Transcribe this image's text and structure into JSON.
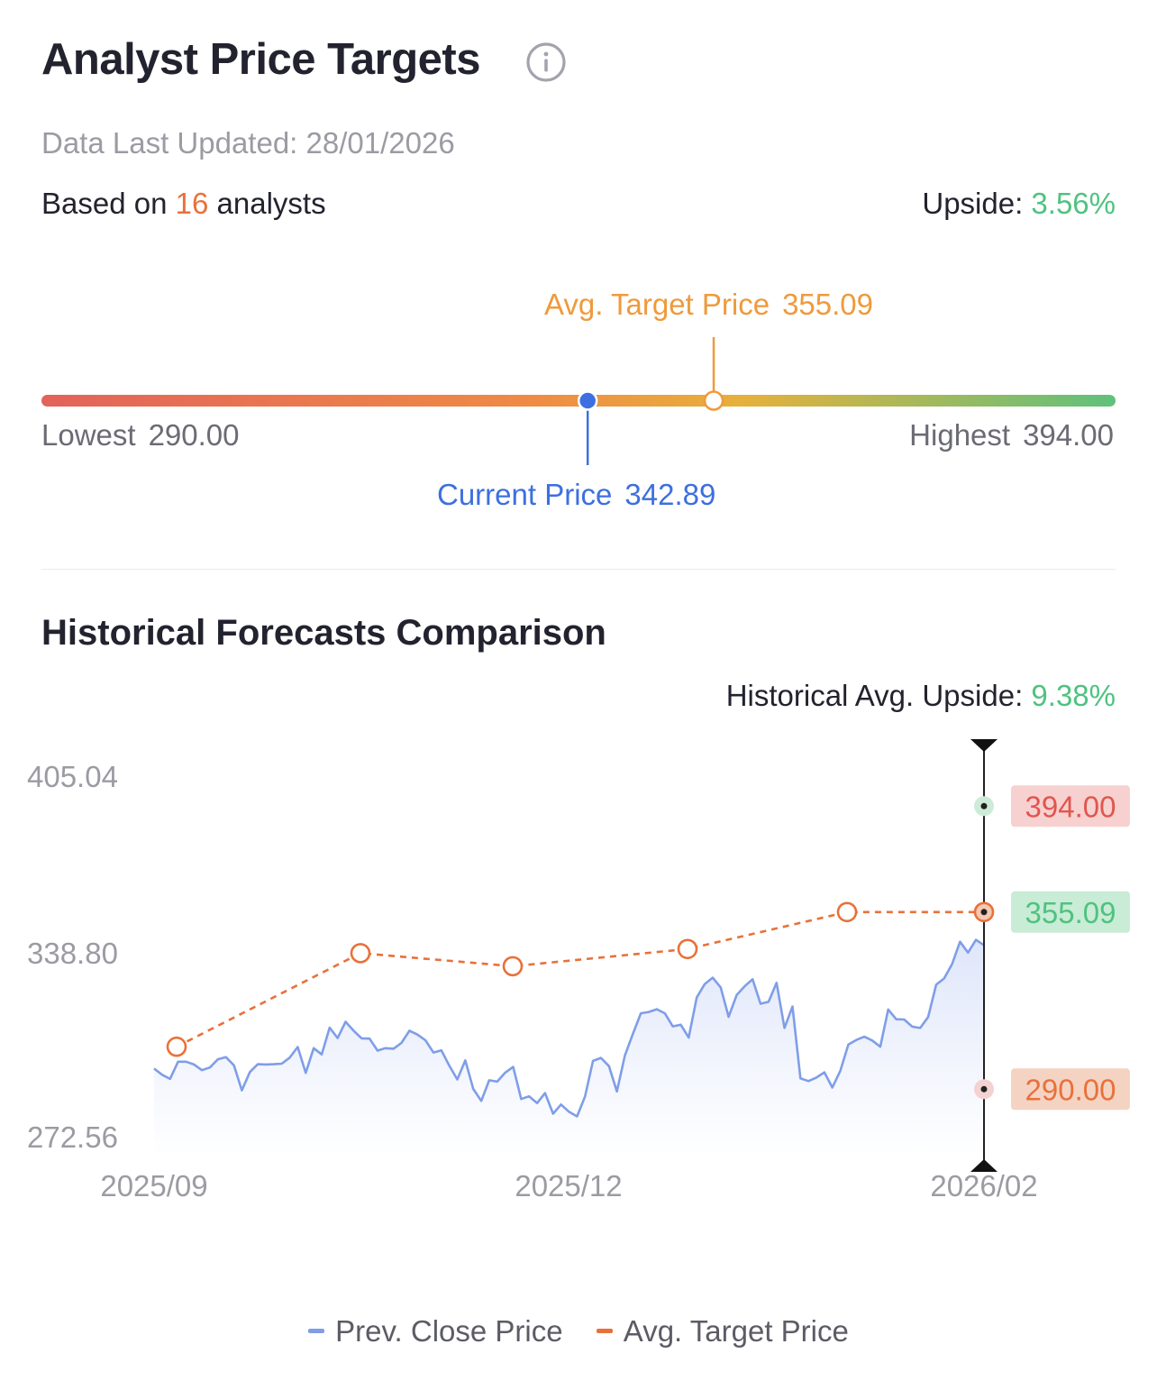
{
  "header": {
    "title": "Analyst Price Targets",
    "updated_label": "Data Last Updated:",
    "updated_value": "28/01/2026",
    "based_prefix": "Based on",
    "analyst_count": "16",
    "based_suffix": "analysts",
    "upside_label": "Upside:",
    "upside_value": "3.56%"
  },
  "range": {
    "avg_target_label": "Avg. Target Price",
    "avg_target_value": "355.09",
    "current_label": "Current Price",
    "current_value": "342.89",
    "lowest_label": "Lowest",
    "lowest_value": "290.00",
    "highest_label": "Highest",
    "highest_value": "394.00",
    "low": 290.0,
    "high": 394.0,
    "current": 342.89,
    "avg_target": 355.09
  },
  "history": {
    "title": "Historical Forecasts Comparison",
    "hist_upside_label": "Historical Avg. Upside:",
    "hist_upside_value": "9.38%",
    "legend": {
      "close_label": "Prev. Close Price",
      "target_label": "Avg. Target Price"
    },
    "badges": {
      "high": "394.00",
      "avg": "355.09",
      "low": "290.00"
    }
  },
  "colors": {
    "close_line": "#7f9ee8",
    "target_line": "#e8713a",
    "green": "#4fc280",
    "red_badge_bg": "#f7d1d0",
    "red_badge_text": "#e0564f",
    "green_badge_bg": "#c9ecd6",
    "orange_badge_bg": "#f5d3c2",
    "orange_badge_text": "#e8713a"
  },
  "chart_data": {
    "type": "line",
    "y_ticks": [
      "405.04",
      "338.80",
      "272.56"
    ],
    "x_ticks": [
      "2025/09",
      "2025/12",
      "2026/02"
    ],
    "ylim": [
      272.56,
      405.04
    ],
    "series": [
      {
        "name": "Prev. Close Price",
        "values": [
          297.6,
          295.3,
          293.8,
          300.1,
          300.1,
          299.1,
          297.0,
          298.0,
          301.0,
          301.8,
          298.8,
          289.6,
          296.3,
          299.2,
          299.1,
          299.2,
          299.4,
          301.6,
          305.5,
          296.0,
          305.1,
          302.8,
          312.6,
          308.8,
          314.8,
          311.5,
          308.7,
          308.6,
          304.2,
          305.1,
          304.9,
          307.0,
          311.5,
          310.1,
          308.0,
          303.5,
          304.3,
          298.6,
          293.6,
          300.6,
          290.1,
          285.7,
          293.3,
          292.8,
          296.1,
          298.2,
          286.4,
          287.4,
          284.9,
          288.6,
          281.0,
          284.4,
          281.7,
          280.0,
          287.3,
          300.4,
          301.5,
          298.5,
          289.2,
          302.4,
          310.3,
          317.9,
          318.4,
          319.4,
          317.9,
          313.1,
          313.7,
          309.0,
          323.7,
          328.6,
          331.0,
          327.4,
          316.6,
          324.6,
          327.8,
          330.4,
          321.4,
          322.1,
          329.1,
          312.5,
          320.4,
          294.0,
          293.0,
          294.3,
          296.2,
          290.6,
          296.8,
          306.4,
          308.1,
          309.3,
          307.9,
          305.6,
          319.3,
          315.7,
          315.6,
          313.0,
          312.5,
          316.5,
          328.4,
          330.7,
          336.0,
          344.2,
          340.2,
          344.9,
          342.9
        ]
      },
      {
        "name": "Avg. Target Price",
        "values": [
          305.6,
          340.0,
          335.2,
          341.5,
          355.1,
          355.09
        ]
      }
    ],
    "current_range": {
      "high": 394.0,
      "avg": 355.09,
      "low": 290.0
    }
  }
}
